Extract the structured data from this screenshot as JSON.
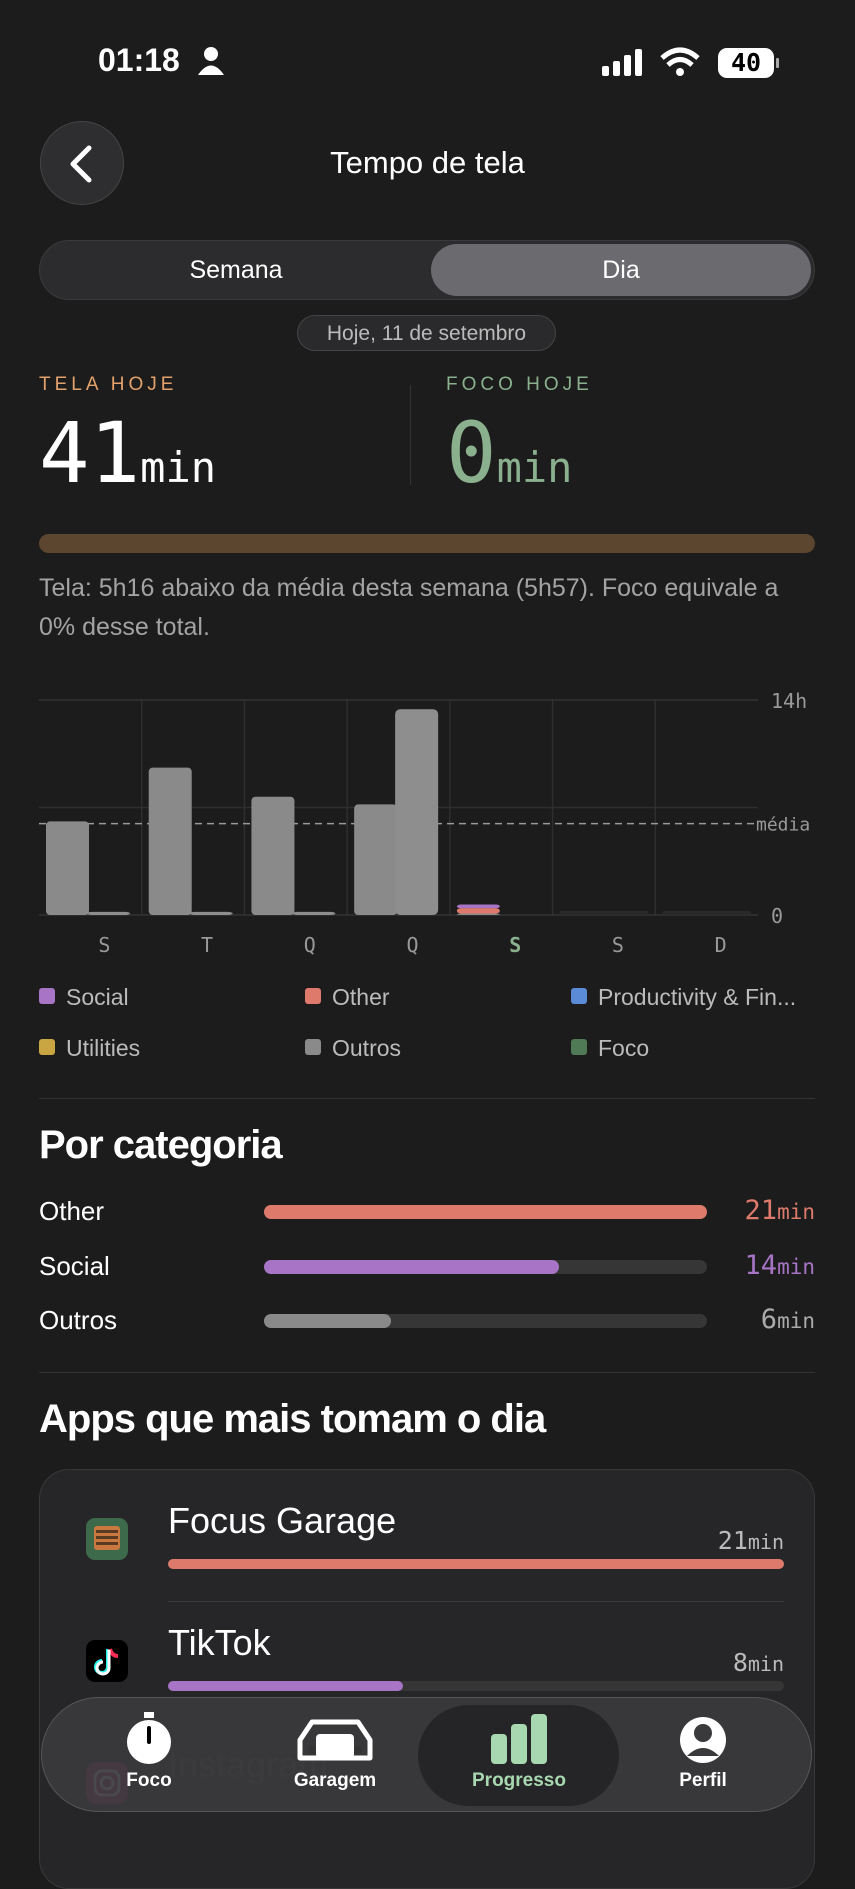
{
  "status_bar": {
    "time": "01:18",
    "battery": "40"
  },
  "header": {
    "title": "Tempo de tela"
  },
  "segmented": {
    "options": [
      "Semana",
      "Dia"
    ],
    "selected": 1
  },
  "date_chip": "Hoje, 11 de setembro",
  "stats": {
    "screen": {
      "label": "TELA HOJE",
      "value": 41,
      "unit": "min"
    },
    "focus": {
      "label": "FOCO HOJE",
      "value": 0,
      "unit": "min"
    }
  },
  "description": "Tela: 5h16 abaixo da média desta semana (5h57). Foco equivale a 0% desse total.",
  "chart_data": {
    "type": "bar",
    "categories": [
      "S",
      "T",
      "Q",
      "Q",
      "S",
      "S",
      "D"
    ],
    "highlight_index": 4,
    "ylim": [
      0,
      14
    ],
    "yticks": [
      {
        "value": 14,
        "label": "14h"
      },
      {
        "value": 0,
        "label": "0"
      }
    ],
    "average": {
      "value": 5.95,
      "label": "média"
    },
    "series": [
      {
        "name": "Social",
        "color": "#a874c6",
        "values": [
          0,
          0,
          0,
          0,
          0.23,
          0,
          0
        ]
      },
      {
        "name": "Other",
        "color": "#dd7a6c",
        "values": [
          0,
          0,
          0,
          0,
          0.35,
          0,
          0
        ]
      },
      {
        "name": "Productivity & Fin...",
        "color": "#5b8ad6",
        "values": [
          0,
          0,
          0,
          0,
          0,
          0,
          0
        ]
      },
      {
        "name": "Utilities",
        "color": "#c9a642",
        "values": [
          0,
          0,
          0,
          0,
          0,
          0,
          0
        ]
      },
      {
        "name": "Outros",
        "color": "#8a8a8a",
        "values": [
          6.1,
          9.6,
          7.7,
          7.2,
          0.1,
          0,
          0
        ]
      },
      {
        "name": "Foco",
        "color": "#4f7a55",
        "values": [
          0,
          0,
          0,
          0,
          0,
          0,
          0
        ]
      }
    ],
    "second_values": [
      0.2,
      0.2,
      0.2,
      13.4,
      null,
      null,
      null
    ],
    "second_color": "#8e8e8e"
  },
  "categories_section": {
    "title": "Por categoria",
    "rows": [
      {
        "name": "Other",
        "value": 21,
        "unit": "min",
        "color": "#dd7a6c"
      },
      {
        "name": "Social",
        "value": 14,
        "unit": "min",
        "color": "#a874c6"
      },
      {
        "name": "Outros",
        "value": 6,
        "unit": "min",
        "color": "#8a8a8a"
      }
    ]
  },
  "apps_section": {
    "title": "Apps que mais tomam o dia",
    "apps": [
      {
        "name": "Focus Garage",
        "value": 21,
        "unit": "min",
        "color": "#dd7a6c"
      },
      {
        "name": "TikTok",
        "value": 8,
        "unit": "min",
        "color": "#a874c6"
      },
      {
        "name": "Instagram"
      }
    ]
  },
  "tab_bar": {
    "tabs": [
      "Foco",
      "Garagem",
      "Progresso",
      "Perfil"
    ],
    "selected": 2
  }
}
